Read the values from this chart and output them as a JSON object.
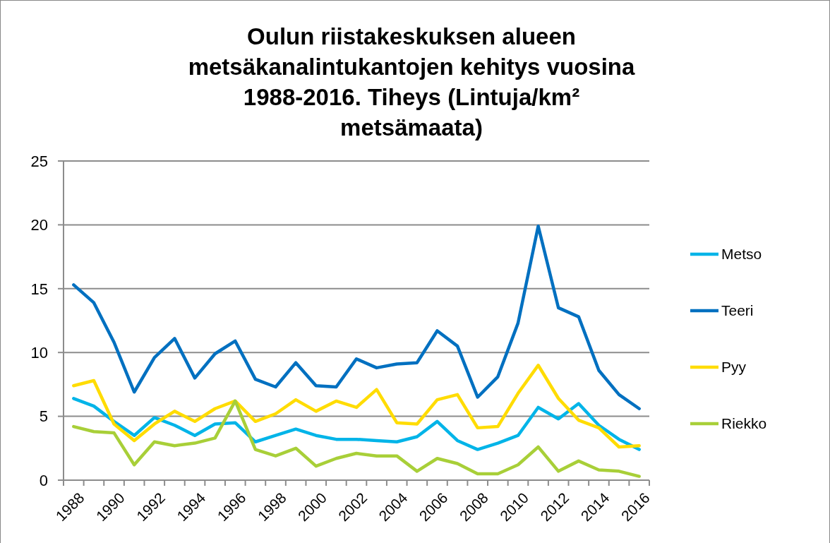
{
  "chart_data": {
    "type": "line",
    "title": "Oulun riistakeskuksen alueen metsäkanalintukantojen kehitys vuosina 1988-2016. Tiheys (Lintuja/km² metsämaata)",
    "categories": [
      "1988",
      null,
      "1990",
      null,
      "1992",
      null,
      "1994",
      null,
      "1996",
      null,
      "1998",
      null,
      "2000",
      null,
      "2002",
      null,
      "2004",
      null,
      "2006",
      null,
      "2008",
      null,
      "2010",
      null,
      "2012",
      null,
      "2014",
      null,
      "2016"
    ],
    "series": [
      {
        "name": "Metso",
        "color": "#00b4e8",
        "values": [
          6.4,
          5.8,
          4.6,
          3.5,
          4.9,
          4.3,
          3.5,
          4.4,
          4.5,
          3.0,
          3.5,
          4.0,
          3.5,
          3.2,
          3.2,
          3.1,
          3.0,
          3.4,
          4.6,
          3.1,
          2.4,
          2.9,
          3.5,
          5.7,
          4.8,
          6.0,
          4.3,
          3.2,
          2.4
        ]
      },
      {
        "name": "Teeri",
        "color": "#0070c0",
        "values": [
          15.3,
          13.9,
          10.8,
          6.9,
          9.6,
          11.1,
          8.0,
          9.9,
          10.9,
          7.9,
          7.3,
          9.2,
          7.4,
          7.3,
          9.5,
          8.8,
          9.1,
          9.2,
          11.7,
          10.5,
          6.5,
          8.1,
          12.3,
          19.9,
          13.5,
          12.8,
          8.6,
          6.7,
          5.6
        ]
      },
      {
        "name": "Pyy",
        "color": "#ffdc00",
        "values": [
          7.4,
          7.8,
          4.4,
          3.1,
          4.4,
          5.4,
          4.6,
          5.6,
          6.2,
          4.6,
          5.2,
          6.3,
          5.4,
          6.2,
          5.7,
          7.1,
          4.5,
          4.4,
          6.3,
          6.7,
          4.1,
          4.2,
          6.8,
          9.0,
          6.4,
          4.7,
          4.1,
          2.6,
          2.7
        ]
      },
      {
        "name": "Riekko",
        "color": "#a8cf38",
        "values": [
          4.2,
          3.8,
          3.7,
          1.2,
          3.0,
          2.7,
          2.9,
          3.3,
          6.2,
          2.4,
          1.9,
          2.5,
          1.1,
          1.7,
          2.1,
          1.9,
          1.9,
          0.7,
          1.7,
          1.3,
          0.5,
          0.5,
          1.2,
          2.6,
          0.7,
          1.5,
          0.8,
          0.7,
          0.3
        ]
      }
    ],
    "ylim": [
      0,
      25
    ],
    "yticks": [
      0,
      5,
      10,
      15,
      20,
      25
    ],
    "grid": "y",
    "legend": "right",
    "marker": "none",
    "line_style": "solid"
  }
}
